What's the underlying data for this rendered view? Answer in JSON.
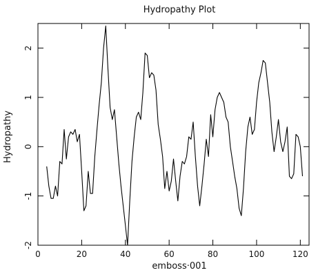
{
  "chart_data": {
    "type": "line",
    "title": "Hydropathy Plot",
    "xlabel": "emboss·001",
    "ylabel": "Hydropathy",
    "xlim": [
      0,
      124
    ],
    "ylim": [
      -2,
      2.5
    ],
    "xticks": [
      0,
      20,
      40,
      60,
      80,
      100,
      120
    ],
    "yticks": [
      -2,
      -1,
      0,
      1,
      2
    ],
    "grid": false,
    "series": [
      {
        "x": [
          4,
          5,
          6,
          7,
          8,
          9,
          10,
          11,
          12,
          13,
          14,
          15,
          16,
          17,
          18,
          19,
          20,
          21,
          22,
          23,
          24,
          25,
          26,
          27,
          28,
          29,
          30,
          31,
          32,
          33,
          34,
          35,
          36,
          37,
          38,
          39,
          40,
          41,
          42,
          43,
          44,
          45,
          46,
          47,
          48,
          49,
          50,
          51,
          52,
          53,
          54,
          55,
          56,
          57,
          58,
          59,
          60,
          61,
          62,
          63,
          64,
          65,
          66,
          67,
          68,
          69,
          70,
          71,
          72,
          73,
          74,
          75,
          76,
          77,
          78,
          79,
          80,
          81,
          82,
          83,
          84,
          85,
          86,
          87,
          88,
          89,
          90,
          91,
          92,
          93,
          94,
          95,
          96,
          97,
          98,
          99,
          100,
          101,
          102,
          103,
          104,
          105,
          106,
          107,
          108,
          109,
          110,
          111,
          112,
          113,
          114,
          115,
          116,
          117,
          118,
          119,
          120,
          121
        ],
        "y": [
          -0.4,
          -0.8,
          -1.05,
          -1.05,
          -0.8,
          -1.0,
          -0.3,
          -0.35,
          0.35,
          -0.25,
          0.2,
          0.3,
          0.25,
          0.35,
          0.1,
          0.25,
          -0.5,
          -1.3,
          -1.2,
          -0.5,
          -0.95,
          -0.95,
          -0.2,
          0.35,
          0.85,
          1.3,
          2.0,
          2.45,
          1.6,
          0.8,
          0.55,
          0.75,
          0.2,
          -0.35,
          -0.8,
          -1.2,
          -1.6,
          -2.0,
          -1.1,
          -0.3,
          0.2,
          0.6,
          0.7,
          0.55,
          1.1,
          1.9,
          1.85,
          1.4,
          1.5,
          1.45,
          1.15,
          0.45,
          0.15,
          -0.2,
          -0.85,
          -0.5,
          -0.9,
          -0.7,
          -0.25,
          -0.7,
          -1.1,
          -0.6,
          -0.3,
          -0.35,
          -0.2,
          0.2,
          0.15,
          0.5,
          -0.2,
          -0.8,
          -1.2,
          -0.8,
          -0.35,
          0.15,
          -0.2,
          0.65,
          0.2,
          0.75,
          1.0,
          1.1,
          1.0,
          0.9,
          0.6,
          0.5,
          0.0,
          -0.3,
          -0.6,
          -0.85,
          -1.25,
          -1.4,
          -0.85,
          -0.1,
          0.4,
          0.6,
          0.25,
          0.35,
          0.9,
          1.3,
          1.5,
          1.75,
          1.7,
          1.3,
          0.9,
          0.3,
          -0.1,
          0.2,
          0.55,
          0.1,
          -0.1,
          0.1,
          0.4,
          -0.6,
          -0.65,
          -0.55,
          0.25,
          0.2,
          0.0,
          -0.6
        ]
      }
    ]
  }
}
